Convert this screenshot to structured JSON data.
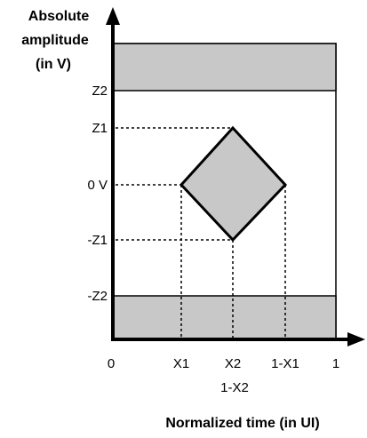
{
  "y_axis": {
    "title_lines": [
      "Absolute",
      "amplitude",
      "(in V)"
    ],
    "tick_labels": {
      "z2": "Z2",
      "z1": "Z1",
      "zero": "0 V",
      "neg_z1": "-Z1",
      "neg_z2": "-Z2"
    }
  },
  "x_axis": {
    "title": "Normalized time (in UI)",
    "tick_labels": {
      "zero": "0",
      "x1": "X1",
      "x2": "X2",
      "one_minus_x2": "1-X2",
      "one_minus_x1": "1-X1",
      "one": "1"
    }
  },
  "colors": {
    "mask_fill": "#c8c8c8",
    "stroke": "#000000",
    "background": "#ffffff"
  }
}
